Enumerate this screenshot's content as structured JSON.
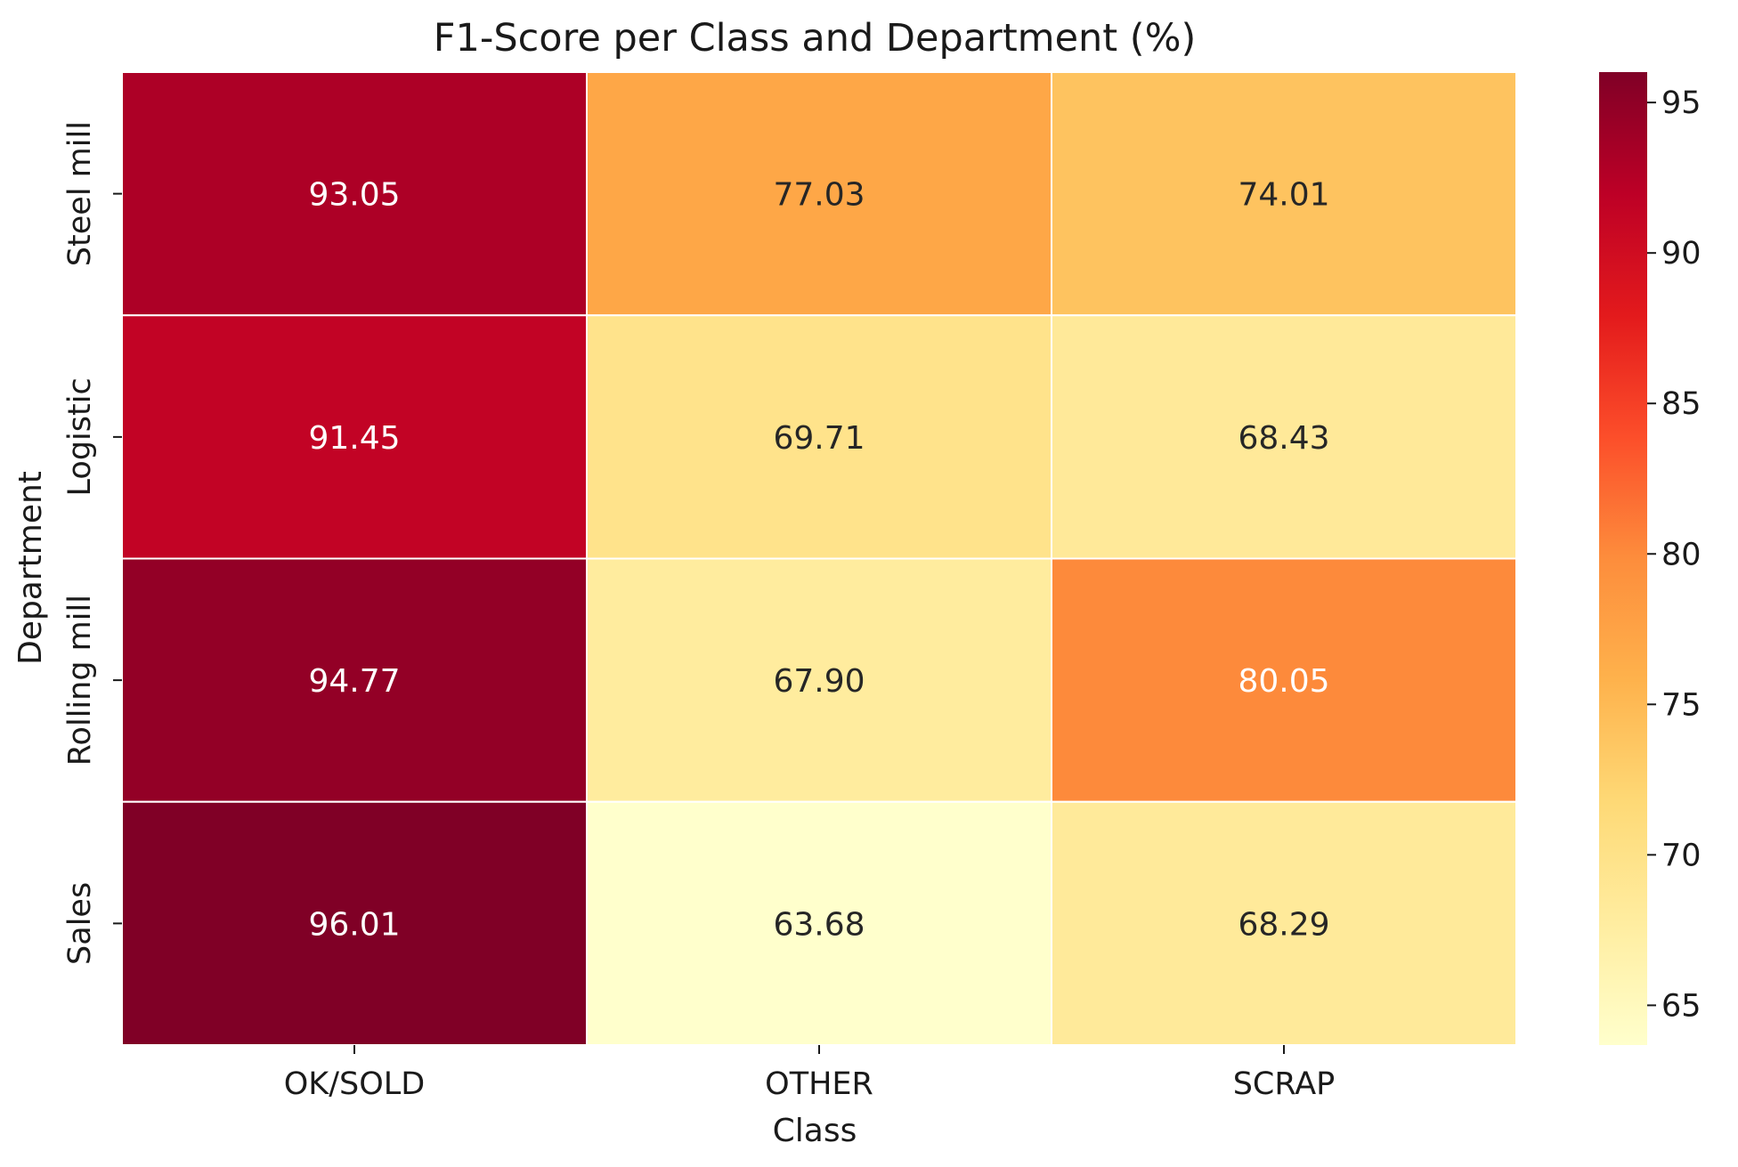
{
  "chart_data": {
    "type": "heatmap",
    "title": "F1-Score per Class and Department (%)",
    "xlabel": "Class",
    "ylabel": "Department",
    "x_categories": [
      "OK/SOLD",
      "OTHER",
      "SCRAP"
    ],
    "y_categories": [
      "Steel mill",
      "Logistic",
      "Rolling mill",
      "Sales"
    ],
    "values": [
      [
        93.05,
        77.03,
        74.01
      ],
      [
        91.45,
        69.71,
        68.43
      ],
      [
        94.77,
        67.9,
        80.05
      ],
      [
        96.01,
        63.68,
        68.29
      ]
    ],
    "value_labels": [
      [
        "93.05",
        "77.03",
        "74.01"
      ],
      [
        "91.45",
        "69.71",
        "68.43"
      ],
      [
        "94.77",
        "67.90",
        "80.05"
      ],
      [
        "96.01",
        "63.68",
        "68.29"
      ]
    ],
    "colormap": "YlOrRd",
    "vmin": 63.68,
    "vmax": 96.01,
    "colorbar_ticks": [
      65,
      70,
      75,
      80,
      85,
      90,
      95
    ],
    "colorbar_tick_labels": [
      "65",
      "70",
      "75",
      "80",
      "85",
      "90",
      "95"
    ],
    "colormap_stops": [
      "#ffffcc",
      "#ffeda0",
      "#fed976",
      "#feb24c",
      "#fd8d3c",
      "#fc4e2a",
      "#e31a1c",
      "#bd0026",
      "#800026"
    ],
    "light_text_color": "#ffffff",
    "dark_text_color": "#262626",
    "grid_line_color": "#ffffff"
  }
}
